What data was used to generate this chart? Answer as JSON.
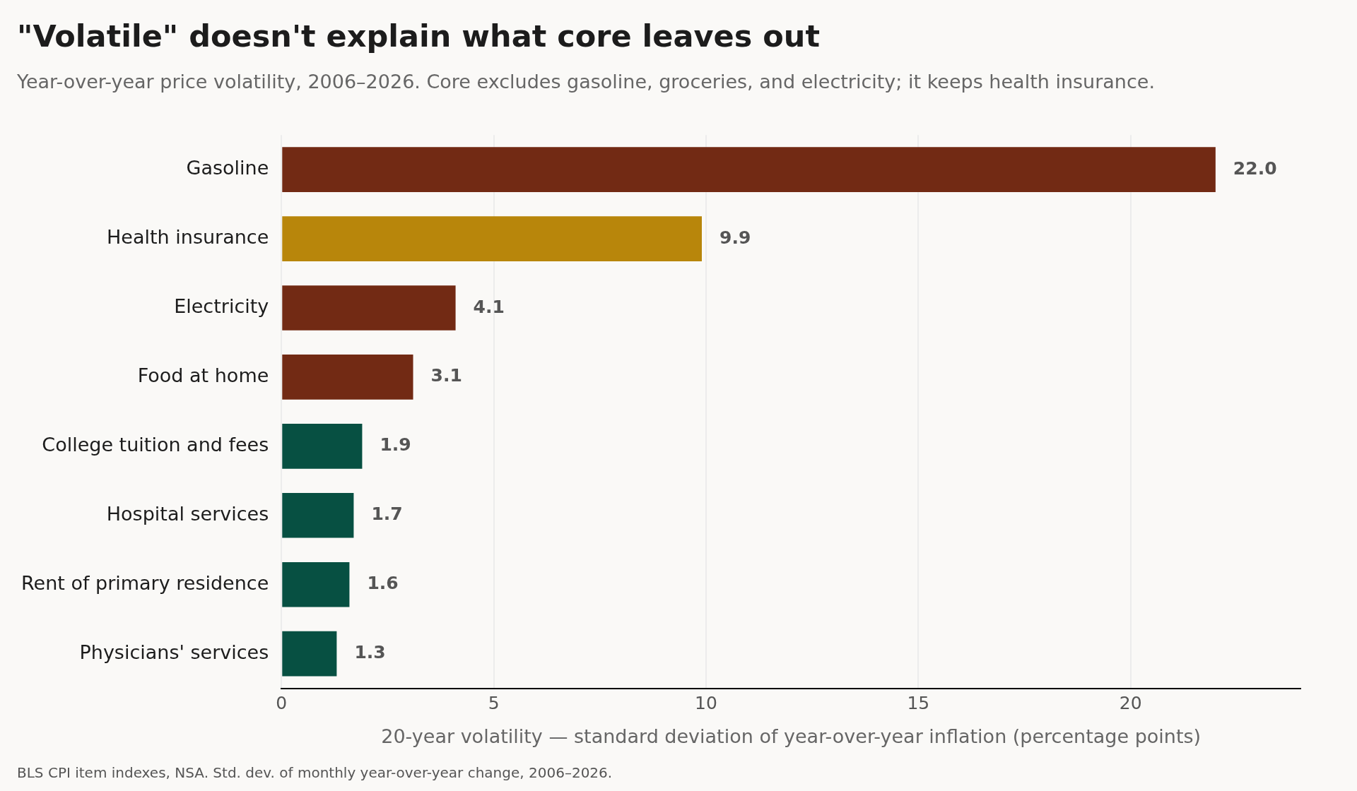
{
  "chart_data": {
    "type": "bar",
    "orientation": "horizontal",
    "title": "\"Volatile\" doesn't explain what core leaves out",
    "subtitle": "Year-over-year price volatility, 2006–2026. Core excludes gasoline, groceries, and electricity; it keeps health insurance.",
    "xlabel": "20-year volatility — standard deviation of year-over-year inflation (percentage points)",
    "annotations": [
      "BLS CPI item indexes, NSA. Std. dev. of monthly year-over-year change, 2006–2026."
    ],
    "categories": [
      "Gasoline",
      "Health insurance",
      "Electricity",
      "Food at home",
      "College tuition and fees",
      "Hospital services",
      "Rent of primary residence",
      "Physicians' services"
    ],
    "values": [
      22.0,
      9.9,
      4.1,
      3.1,
      1.9,
      1.7,
      1.6,
      1.3
    ],
    "value_labels": [
      "22.0",
      "9.9",
      "4.1",
      "3.1",
      "1.9",
      "1.7",
      "1.6",
      "1.3"
    ],
    "colors": [
      "#722a14",
      "#b8860b",
      "#722a14",
      "#722a14",
      "#075042",
      "#075042",
      "#075042",
      "#075042"
    ],
    "xlim": [
      0,
      24
    ],
    "xticks": [
      0,
      5,
      10,
      15,
      20
    ],
    "grid": "x",
    "legend": false
  }
}
